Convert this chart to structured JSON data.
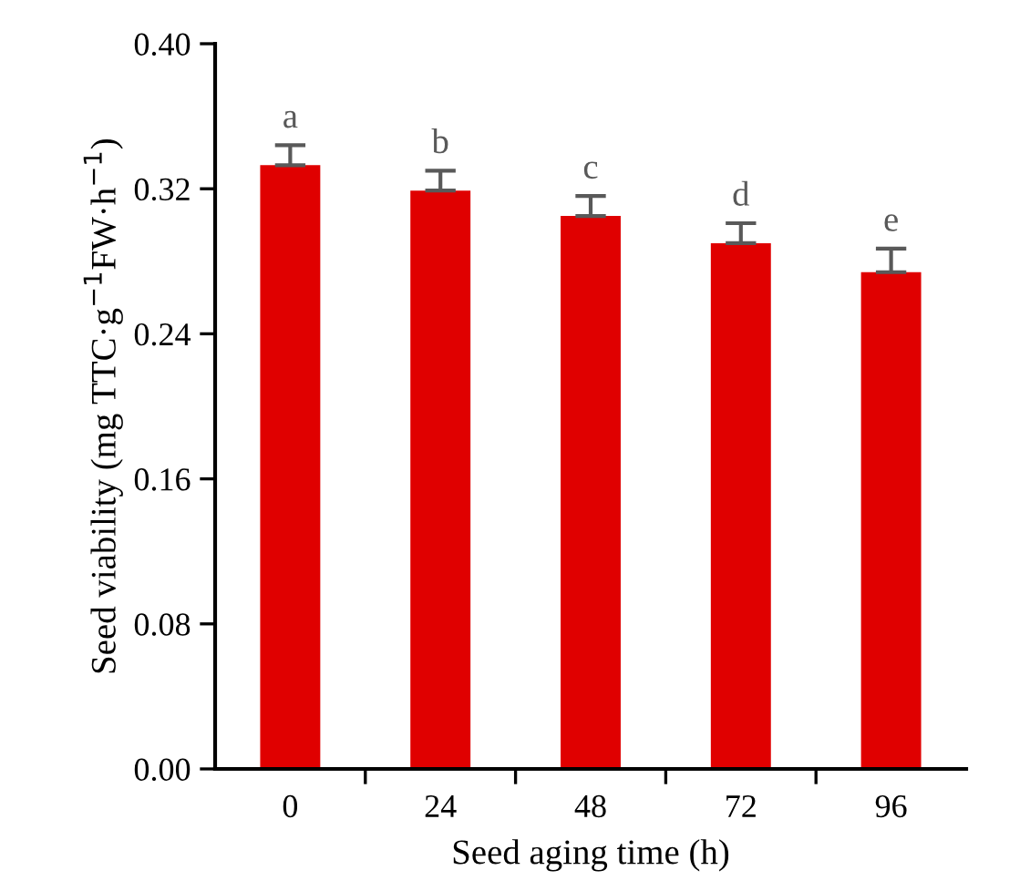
{
  "chart_data": {
    "type": "bar",
    "xlabel": "Seed aging time (h)",
    "ylabel": "Seed viability (mg TTC·g$^{−1}$FW·h$^{−1}$)",
    "categories": [
      "0",
      "24",
      "48",
      "72",
      "96"
    ],
    "values": [
      0.333,
      0.319,
      0.305,
      0.29,
      0.274
    ],
    "errors": [
      0.011,
      0.011,
      0.011,
      0.011,
      0.013
    ],
    "color": "#e00000",
    "ylim": [
      0,
      0.4
    ],
    "yticks": [
      {
        "value": 0,
        "label": "0.00"
      },
      {
        "value": 0.08,
        "label": "0.08"
      },
      {
        "value": 0.16,
        "label": "0.16"
      },
      {
        "value": 0.24,
        "label": "0.24"
      },
      {
        "value": 0.32,
        "label": "0.32"
      },
      {
        "value": 0.4,
        "label": "0.40"
      }
    ],
    "annotations": [
      {
        "text": "a",
        "x": "0",
        "y": 0.344
      },
      {
        "text": "b",
        "x": "24",
        "y": 0.33
      },
      {
        "text": "c",
        "x": "48",
        "y": 0.316
      },
      {
        "text": "d",
        "x": "72",
        "y": 0.301
      },
      {
        "text": "e",
        "x": "96",
        "y": 0.287
      }
    ],
    "grid": false,
    "legend": false
  }
}
